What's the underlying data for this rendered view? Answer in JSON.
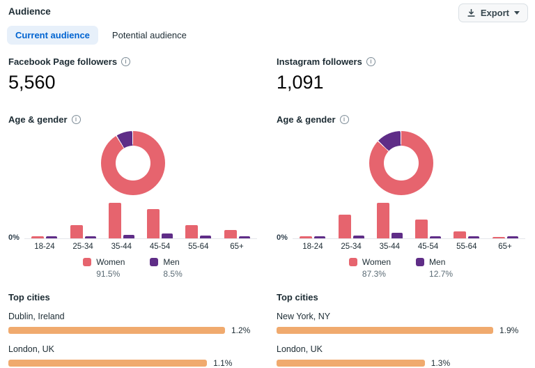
{
  "page": {
    "title": "Audience"
  },
  "toolbar": {
    "export_label": "Export"
  },
  "tabs": [
    {
      "label": "Current audience",
      "active": true
    },
    {
      "label": "Potential audience",
      "active": false
    }
  ],
  "colors": {
    "women": "#e6646e",
    "men": "#5f2d87",
    "city_bar": "#f0aa6e",
    "tab_active_bg": "#e7f0fa",
    "tab_active_text": "#0064d1"
  },
  "panels": [
    {
      "metric_label": "Facebook Page followers",
      "metric_value": "5,560",
      "section_title": "Age & gender",
      "chart_data": {
        "type": "donut+bar",
        "donut": {
          "type": "pie",
          "series": [
            {
              "name": "Women",
              "value": 91.5
            },
            {
              "name": "Men",
              "value": 8.5
            }
          ]
        },
        "bars": {
          "type": "bar",
          "categories": [
            "18-24",
            "25-34",
            "35-44",
            "45-54",
            "55-64",
            "65+"
          ],
          "series": [
            {
              "name": "Women",
              "values": [
                1.8,
                11,
                30,
                25,
                11,
                7
              ]
            },
            {
              "name": "Men",
              "values": [
                2,
                2,
                3,
                4.3,
                2.5,
                2
              ]
            }
          ],
          "ytick": "0%",
          "ylim": [
            0,
            32
          ],
          "note": "values estimated from bar heights; only 0% tick shown"
        }
      },
      "legend": [
        {
          "label": "Women",
          "value": "91.5%"
        },
        {
          "label": "Men",
          "value": "8.5%"
        }
      ],
      "top_cities": {
        "title": "Top cities",
        "rows": [
          {
            "label": "Dublin, Ireland",
            "value": "1.2%",
            "pct": 1.2
          },
          {
            "label": "London, UK",
            "value": "1.1%",
            "pct": 1.1
          }
        ]
      }
    },
    {
      "metric_label": "Instagram followers",
      "metric_value": "1,091",
      "section_title": "Age & gender",
      "chart_data": {
        "type": "donut+bar",
        "donut": {
          "type": "pie",
          "series": [
            {
              "name": "Women",
              "value": 87.3
            },
            {
              "name": "Men",
              "value": 12.7
            }
          ]
        },
        "bars": {
          "type": "bar",
          "categories": [
            "18-24",
            "25-34",
            "35-44",
            "45-54",
            "55-64",
            "65+"
          ],
          "series": [
            {
              "name": "Women",
              "values": [
                1.7,
                20,
                30,
                16,
                6,
                1.5
              ]
            },
            {
              "name": "Men",
              "values": [
                1.7,
                2.3,
                5,
                2,
                1.7,
                1.7
              ]
            }
          ],
          "ytick": "0%",
          "ylim": [
            0,
            32
          ],
          "note": "values estimated from bar heights; only 0% tick shown"
        }
      },
      "legend": [
        {
          "label": "Women",
          "value": "87.3%"
        },
        {
          "label": "Men",
          "value": "12.7%"
        }
      ],
      "top_cities": {
        "title": "Top cities",
        "rows": [
          {
            "label": "New York, NY",
            "value": "1.9%",
            "pct": 1.9
          },
          {
            "label": "London, UK",
            "value": "1.3%",
            "pct": 1.3
          }
        ]
      }
    }
  ]
}
